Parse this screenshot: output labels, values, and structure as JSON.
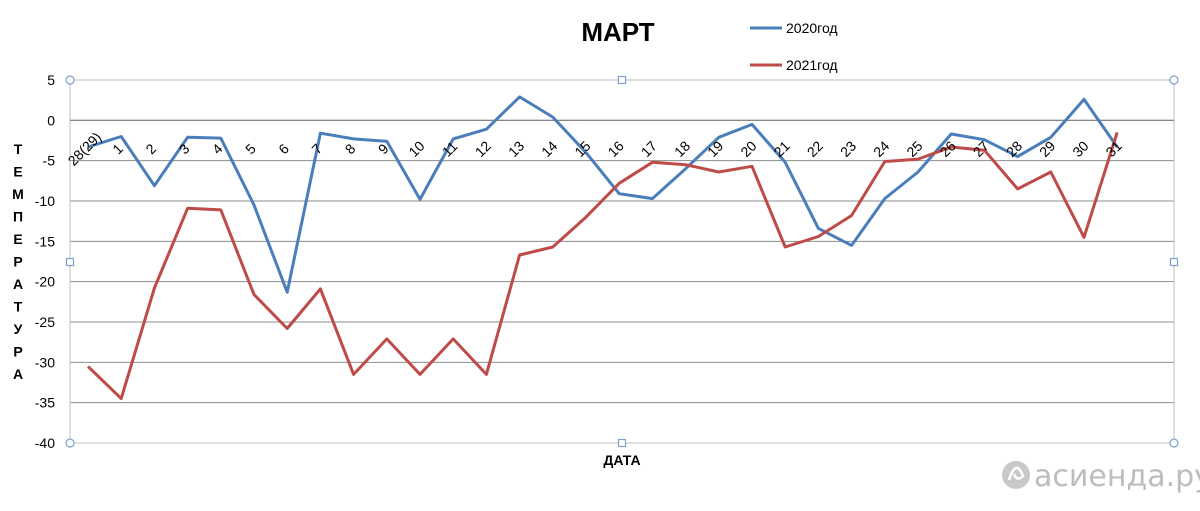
{
  "chart_data": {
    "type": "line",
    "title": "МАРТ",
    "xlabel": "ДАТА",
    "ylabel": "ТЕМПЕРАТУРА",
    "categories": [
      "28(29)",
      "1",
      "2",
      "3",
      "4",
      "5",
      "6",
      "7",
      "8",
      "9",
      "10",
      "11",
      "12",
      "13",
      "14",
      "15",
      "16",
      "17",
      "18",
      "19",
      "20",
      "21",
      "22",
      "23",
      "24",
      "25",
      "26",
      "27",
      "28",
      "29",
      "30",
      "31"
    ],
    "ylim": [
      -40,
      5
    ],
    "yticks": [
      5,
      0,
      -5,
      -10,
      -15,
      -20,
      -25,
      -30,
      -35,
      -40
    ],
    "grid": true,
    "legend_position": "top-right",
    "series": [
      {
        "name": "2020год",
        "color": "#4a7ebb",
        "values": [
          -3.3,
          -2.0,
          -8.1,
          -2.1,
          -2.2,
          -10.5,
          -21.3,
          -1.6,
          -2.3,
          -2.6,
          -9.8,
          -2.3,
          -1.1,
          2.9,
          0.4,
          -4.0,
          -9.1,
          -9.7,
          -6.0,
          -2.1,
          -0.5,
          -5.2,
          -13.4,
          -15.5,
          -9.7,
          -6.4,
          -1.7,
          -2.4,
          -4.5,
          -2.1,
          2.6,
          -3.3
        ]
      },
      {
        "name": "2021год",
        "color": "#be4b48",
        "values": [
          -30.5,
          -34.5,
          -20.8,
          -10.9,
          -11.1,
          -21.6,
          -25.8,
          -20.9,
          -31.5,
          -27.1,
          -31.5,
          -27.1,
          -31.5,
          -16.7,
          -15.7,
          -12.0,
          -7.8,
          -5.2,
          -5.5,
          -6.4,
          -5.7,
          -15.7,
          -14.4,
          -11.8,
          -5.1,
          -4.8,
          -3.3,
          -3.7,
          -8.5,
          -6.4,
          -14.5,
          -1.5
        ]
      }
    ]
  },
  "watermark": {
    "text": "асиенда.ру",
    "icon": "asienda-logo-icon"
  }
}
